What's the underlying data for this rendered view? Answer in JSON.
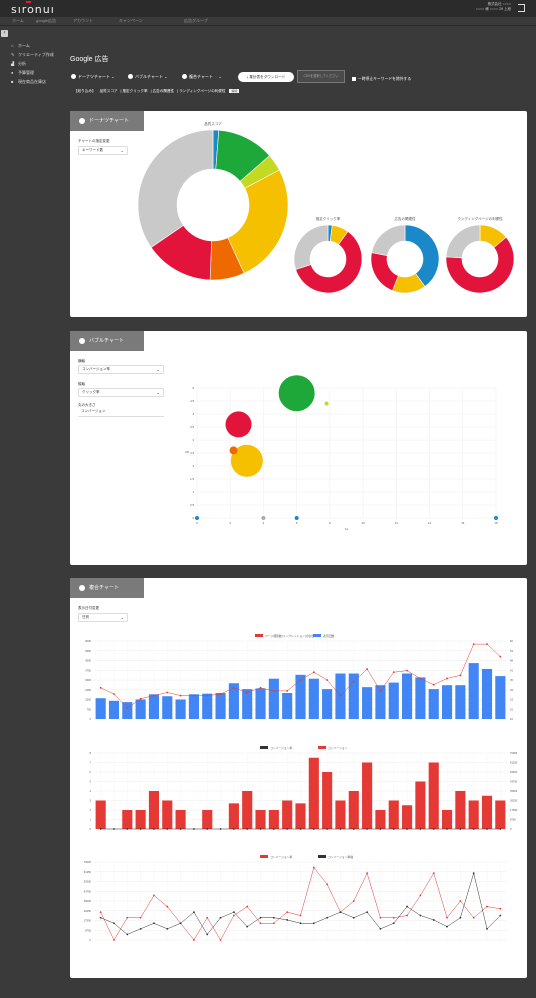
{
  "app": {
    "logo": "sıronuı",
    "company_lines": [
      "株式会社 ○○○○",
      "○○○○ 様 ○○○○ 29 上段"
    ]
  },
  "nav": [
    "ホーム",
    "google広告",
    "アカウント",
    "キャンペーン",
    "広告グループ"
  ],
  "sidebar": [
    {
      "icon": "home",
      "label": "ホーム"
    },
    {
      "icon": "pen",
      "label": "クリエーティブ作成"
    },
    {
      "icon": "chart",
      "label": "分析"
    },
    {
      "icon": "user",
      "label": "予算管理"
    },
    {
      "icon": "box",
      "label": "現在商品在庫店"
    }
  ],
  "page": {
    "title": "Google 広告"
  },
  "toolbar": {
    "donut": "ドーナツチャート",
    "bubble": "バブルチャート",
    "combo": "複合チャート",
    "download": "集計表をダウンロード",
    "select_dl": "CSVを選択してください",
    "checkbox": "一時停止キーワードを除外する"
  },
  "filter": {
    "prefix": "【絞り込み】",
    "items": [
      "品質スコア",
      "推定クリック率",
      "広告の関連性",
      "ランディングページの利便性"
    ],
    "tag": "解除"
  },
  "donut_card": {
    "title": "ドーナツチャート",
    "select_label": "チャートの指定変更",
    "select_value": "キーワード数",
    "main_title": "品質スコア",
    "small_titles": [
      "推定クリック率",
      "広告の関連性",
      "ランディングページの利便性"
    ]
  },
  "bubble_card": {
    "title": "バブルチャート",
    "axis_label": "横軸",
    "axis_value": "コンバージョン率",
    "y_label": "縦軸",
    "y_value": "クリック率",
    "size_label": "丸の大きさ",
    "size_value": "コンバージョン"
  },
  "combo_card": {
    "title": "複合チャート",
    "label": "表示日付変更",
    "value": "日別"
  },
  "colors": {
    "blue": "#4285f4",
    "red": "#e53935",
    "green": "#34a853",
    "yellow": "#fbbc05"
  },
  "chart_data": [
    {
      "type": "pie",
      "title": "品質スコア",
      "values": [
        2,
        20,
        6,
        42,
        12,
        24,
        56
      ],
      "colors": [
        "#1a88c9",
        "#1fa83a",
        "#c4d921",
        "#f5c000",
        "#ee6a00",
        "#e3143c",
        "#c9c9c9"
      ]
    },
    {
      "type": "pie",
      "title": "推定クリック率",
      "values": [
        2,
        8,
        60,
        30
      ],
      "colors": [
        "#1a88c9",
        "#f5c000",
        "#e3143c",
        "#c9c9c9"
      ]
    },
    {
      "type": "pie",
      "title": "広告の関連性",
      "values": [
        40,
        16,
        22,
        22
      ],
      "colors": [
        "#1a88c9",
        "#f5c000",
        "#e3143c",
        "#c9c9c9"
      ]
    },
    {
      "type": "pie",
      "title": "ランディングページの利便性",
      "values": [
        14,
        62,
        24
      ],
      "colors": [
        "#f5c000",
        "#e3143c",
        "#c9c9c9"
      ]
    },
    {
      "type": "scatter",
      "xlabel": "CL",
      "ylabel": "CR",
      "xlim": [
        0,
        18
      ],
      "ylim": [
        0,
        5
      ],
      "xticks": [
        0,
        2,
        4,
        6,
        8,
        10,
        12,
        14,
        16,
        18
      ],
      "yticks": [
        0,
        0.5,
        1,
        1.5,
        2,
        2.5,
        3,
        3.5,
        4,
        4.5,
        5
      ],
      "points": [
        {
          "x": 6,
          "y": 4.8,
          "r": 18,
          "c": "#1fa83a"
        },
        {
          "x": 2.5,
          "y": 3.6,
          "r": 13,
          "c": "#e3143c"
        },
        {
          "x": 3,
          "y": 2.2,
          "r": 16,
          "c": "#f5c000"
        },
        {
          "x": 2.2,
          "y": 2.6,
          "r": 4,
          "c": "#ee6a00"
        },
        {
          "x": 7.8,
          "y": 4.4,
          "r": 2,
          "c": "#c4d921"
        },
        {
          "x": 0,
          "y": 0,
          "r": 2,
          "c": "#1a88c9"
        },
        {
          "x": 4,
          "y": 0,
          "r": 2,
          "c": "#aaaaaa"
        },
        {
          "x": 6,
          "y": 0,
          "r": 2,
          "c": "#1a88c9"
        },
        {
          "x": 18,
          "y": 0,
          "r": 2,
          "c": "#1a88c9"
        }
      ]
    },
    {
      "type": "bar",
      "legend": [
        "ページ閲覧数(インプレッション)の割合",
        "表示回数"
      ],
      "ylim": [
        0,
        6000
      ],
      "y2lim": [
        10,
        60
      ],
      "bars": [
        1600,
        1400,
        1300,
        1500,
        1900,
        1750,
        1500,
        1900,
        1950,
        2000,
        2750,
        2300,
        2350,
        3100,
        2000,
        3400,
        3100,
        2300,
        3500,
        3500,
        2450,
        2600,
        2800,
        3500,
        3200,
        2300,
        2600,
        2600,
        4300,
        3850,
        3300
      ],
      "line": [
        30,
        26,
        17,
        23,
        25,
        27,
        25,
        25,
        25,
        26,
        30,
        27,
        30,
        28,
        28,
        35,
        40,
        35,
        25,
        34,
        42,
        28,
        40,
        41,
        36,
        32,
        36,
        38,
        58,
        58,
        50
      ],
      "color": "#4285f4"
    },
    {
      "type": "bar",
      "legend": [
        "コンバージョン率",
        "コンバージョン"
      ],
      "ylim": [
        0,
        8
      ],
      "y2lim": [
        0,
        70000
      ],
      "bars": [
        3,
        0,
        2,
        2,
        4,
        3,
        2,
        0,
        2,
        0,
        2.7,
        4,
        2,
        2,
        3,
        2.7,
        7.5,
        6,
        3,
        4,
        7,
        2,
        3,
        2.5,
        5,
        7,
        2,
        4,
        3,
        3.5,
        3
      ],
      "line": [
        3,
        1,
        2,
        3,
        3,
        1,
        1,
        1,
        3,
        2,
        4,
        3,
        2,
        2,
        3,
        3,
        3,
        4,
        3,
        4,
        3,
        1,
        3,
        4,
        4,
        2,
        3,
        2,
        7,
        3,
        3
      ],
      "color": "#e53935"
    },
    {
      "type": "line",
      "legend": [
        "コンバージョン率",
        "コンバージョン単価"
      ],
      "ylim": [
        0,
        70000
      ],
      "series": [
        [
          25000,
          0,
          20000,
          20000,
          40000,
          30000,
          15000,
          0,
          20000,
          0,
          22000,
          30000,
          15000,
          15000,
          25000,
          22000,
          65000,
          50000,
          25000,
          35000,
          60000,
          20000,
          20000,
          22000,
          40000,
          60000,
          20000,
          35000,
          20000,
          30000,
          28000
        ],
        [
          20000,
          15000,
          5000,
          10000,
          15000,
          10000,
          15000,
          25000,
          5000,
          20000,
          25000,
          12000,
          20000,
          20000,
          18000,
          15000,
          15000,
          20000,
          25000,
          20000,
          25000,
          10000,
          15000,
          30000,
          22000,
          18000,
          12000,
          20000,
          60000,
          10000,
          22000
        ]
      ]
    }
  ]
}
